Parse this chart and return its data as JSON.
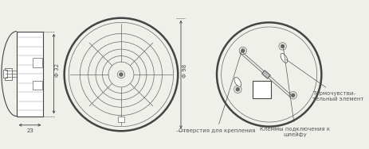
{
  "bg_color": "#f0f0eb",
  "line_color": "#888888",
  "dark_line": "#444444",
  "med_line": "#666666",
  "annotation_color": "#555555",
  "fig_width": 4.63,
  "fig_height": 1.88,
  "dpi": 100,
  "label_otv": "Отверстия для крепления",
  "label_klemm": "Клеммы подключения к\nшлейфу",
  "label_termo": "Термочувстви-\nтельный элемент",
  "dim_23": "23",
  "dim_32": "Ф 32",
  "dim_98": "Ф 98"
}
